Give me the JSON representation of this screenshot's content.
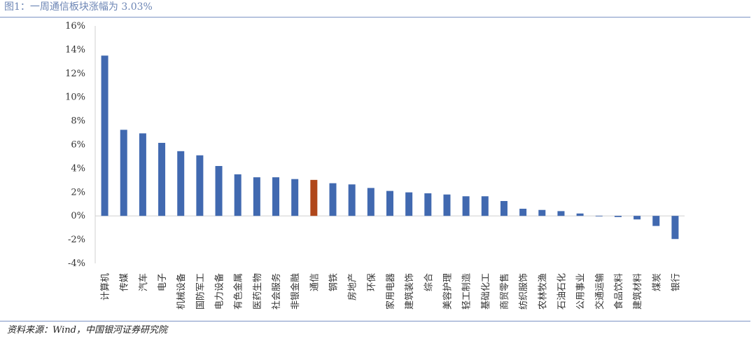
{
  "figure": {
    "title": "图1：一周通信板块涨幅为 3.03%",
    "source": "资料来源：Wind，中国银河证券研究院"
  },
  "colors": {
    "bar": "#4169b0",
    "highlight_bar": "#b0471a",
    "axis": "#d0d0d0",
    "text": "#333333",
    "rule": "#7b93c4"
  },
  "chart_data": {
    "type": "bar",
    "categories": [
      "计算机",
      "传媒",
      "汽车",
      "电子",
      "机械设备",
      "国防军工",
      "电力设备",
      "有色金属",
      "医药生物",
      "社会服务",
      "非银金融",
      "通信",
      "钢铁",
      "房地产",
      "环保",
      "家用电器",
      "建筑装饰",
      "综合",
      "美容护理",
      "轻工制造",
      "基础化工",
      "商贸零售",
      "纺织服饰",
      "农林牧渔",
      "石油石化",
      "公用事业",
      "交通运输",
      "食品饮料",
      "建筑材料",
      "煤炭",
      "银行"
    ],
    "values": [
      13.5,
      7.25,
      6.95,
      6.15,
      5.45,
      5.1,
      4.2,
      3.5,
      3.25,
      3.25,
      3.1,
      3.03,
      2.75,
      2.65,
      2.35,
      2.1,
      1.98,
      1.9,
      1.8,
      1.65,
      1.65,
      1.25,
      0.6,
      0.5,
      0.4,
      0.2,
      -0.05,
      -0.1,
      -0.3,
      -0.85,
      -1.95
    ],
    "highlight": "通信",
    "ylim": [
      -4,
      16
    ],
    "yticks": [
      -4,
      -2,
      0,
      2,
      4,
      6,
      8,
      10,
      12,
      14,
      16
    ],
    "ytick_labels": [
      "-4%",
      "-2%",
      "0%",
      "2%",
      "4%",
      "6%",
      "8%",
      "10%",
      "12%",
      "14%",
      "16%"
    ],
    "xlabel": "",
    "ylabel": "",
    "grid": false,
    "legend": false
  }
}
